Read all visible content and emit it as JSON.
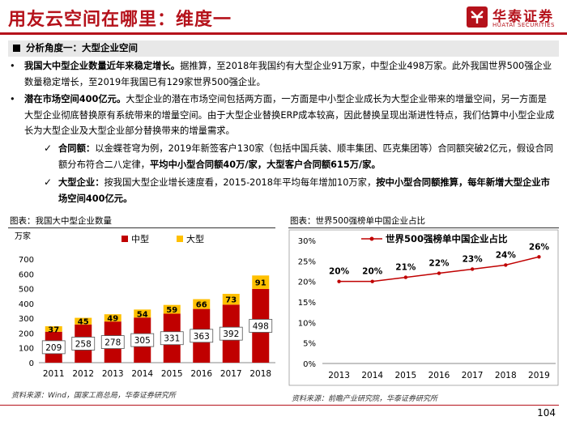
{
  "header": {
    "title": "用友云空间在哪里：维度一",
    "brand_name": "华泰证券",
    "brand_en": "HUATAI SECURITIES",
    "brand_color": "#b5121b"
  },
  "section": {
    "heading": "分析角度一：大型企业空间",
    "p1_bold": "我国大中型企业数量近年来稳定增长。",
    "p1_rest": "据推算，至2018年我国约有大型企业91万家，中型企业498万家。此外我国世界500强企业数量稳定增长，至2019年我国已有129家世界500强企业。",
    "p2_bold": "潜在市场空间400亿元。",
    "p2_rest": "大型企业的潜在市场空间包括两方面，一方面是中小型企业成长为大型企业带来的增量空间，另一方面是大型企业彻底替换原有系统带来的增量空间。由于大型企业替换ERP成本较高，因此替换呈现出渐进性特点，我们估算中小型企业成长为大型企业及大型企业部分替换带来的增量需求。",
    "s1_bold": "合同额：",
    "s1_rest": "以金蝶苍穹为例，2019年新签客户130家（包括中国兵装、顺丰集团、匹克集团等）合同额突破2亿元，假设合同额分布符合二八定律，",
    "s1_tail": "平均中小型合同额40万/家，大型客户合同额615万/家。",
    "s2_bold": "大型企业：",
    "s2_rest": "按我国大型企业增长速度看，2015-2018年平均每年增加10万家，",
    "s2_tail": "按中小型合同额推算，每年新增大型企业市场空间400亿元。"
  },
  "chart_left_meta": {
    "caption": "图表：我国大中型企业数量",
    "unit": "万家",
    "source": "资料来源：Wind，国家工商总局，华泰证券研究所"
  },
  "chart_right_meta": {
    "caption": "图表：世界500强榜单中国企业占比",
    "source": "资料来源：前瞻产业研究院，华泰证券研究所"
  },
  "page_number": "104",
  "chart_data": [
    {
      "type": "bar",
      "stacked": true,
      "categories": [
        "2011",
        "2012",
        "2013",
        "2014",
        "2015",
        "2016",
        "2017",
        "2018"
      ],
      "series": [
        {
          "name": "中型",
          "color": "#c00000",
          "values": [
            209,
            258,
            278,
            305,
            331,
            363,
            392,
            498
          ]
        },
        {
          "name": "大型",
          "color": "#ffc000",
          "values": [
            37,
            45,
            49,
            54,
            59,
            66,
            73,
            91
          ]
        }
      ],
      "ylim": [
        0,
        700
      ],
      "yticks": [
        "0",
        "100",
        "200",
        "300",
        "400",
        "500",
        "600",
        "700"
      ],
      "legend": "top-right",
      "ylabel": "万家"
    },
    {
      "type": "line",
      "categories": [
        "2013",
        "2014",
        "2015",
        "2016",
        "2017",
        "2018",
        "2019"
      ],
      "series": [
        {
          "name": "世界500强榜单中国企业占比",
          "color": "#c00000",
          "values": [
            20,
            20,
            21,
            22,
            23,
            24,
            26
          ]
        }
      ],
      "labels": [
        "20%",
        "20%",
        "21%",
        "22%",
        "23%",
        "24%",
        "26%"
      ],
      "ylim": [
        0,
        30
      ],
      "yticks": [
        "0%",
        "5%",
        "10%",
        "15%",
        "20%",
        "25%",
        "30%"
      ],
      "legend": "top"
    }
  ]
}
